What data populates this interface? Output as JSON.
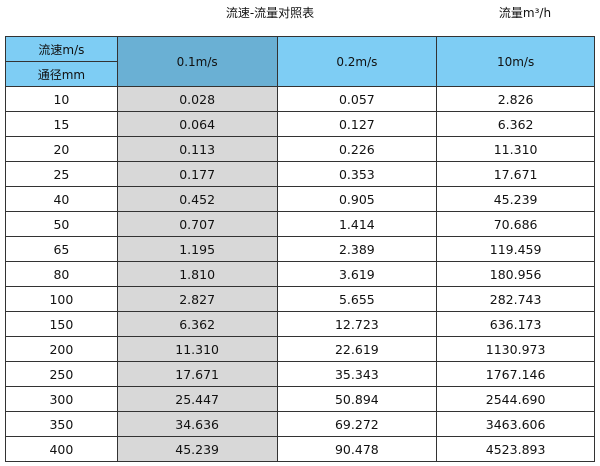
{
  "title": "流速-流量对照表",
  "unit": "流量m³/h",
  "header": {
    "velocity_label": "流速m/s",
    "diameter_label": "通径mm",
    "columns": [
      "0.1m/s",
      "0.2m/s",
      "10m/s"
    ]
  },
  "colors": {
    "header": "#7ecdf4",
    "header_selected": "#6ab0d4",
    "selected_column": "#d8d8d8"
  },
  "rows": [
    [
      "10",
      "0.028",
      "0.057",
      "2.826"
    ],
    [
      "15",
      "0.064",
      "0.127",
      "6.362"
    ],
    [
      "20",
      "0.113",
      "0.226",
      "11.310"
    ],
    [
      "25",
      "0.177",
      "0.353",
      "17.671"
    ],
    [
      "40",
      "0.452",
      "0.905",
      "45.239"
    ],
    [
      "50",
      "0.707",
      "1.414",
      "70.686"
    ],
    [
      "65",
      "1.195",
      "2.389",
      "119.459"
    ],
    [
      "80",
      "1.810",
      "3.619",
      "180.956"
    ],
    [
      "100",
      "2.827",
      "5.655",
      "282.743"
    ],
    [
      "150",
      "6.362",
      "12.723",
      "636.173"
    ],
    [
      "200",
      "11.310",
      "22.619",
      "1130.973"
    ],
    [
      "250",
      "17.671",
      "35.343",
      "1767.146"
    ],
    [
      "300",
      "25.447",
      "50.894",
      "2544.690"
    ],
    [
      "350",
      "34.636",
      "69.272",
      "3463.606"
    ],
    [
      "400",
      "45.239",
      "90.478",
      "4523.893"
    ]
  ]
}
